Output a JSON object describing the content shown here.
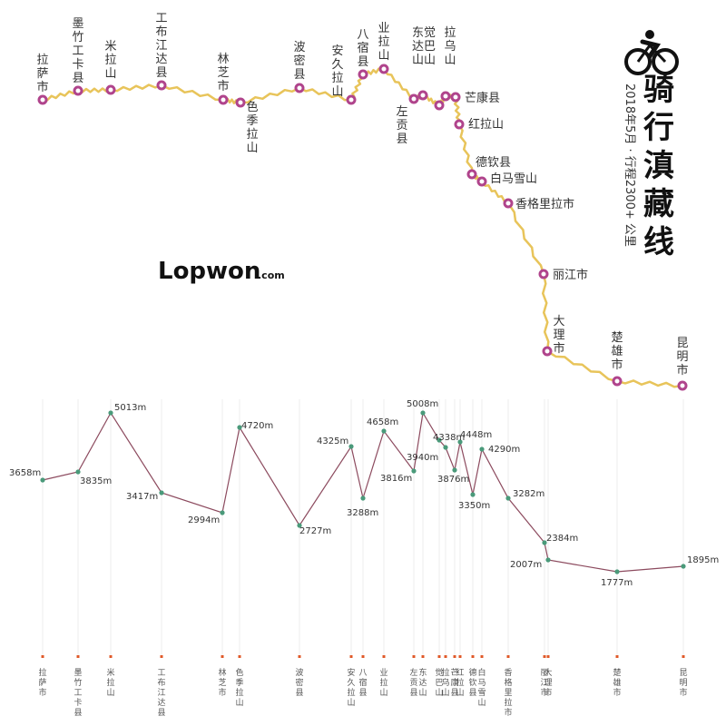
{
  "title": "骑行滇藏线",
  "subtitle": "2018年5月 · 行程2300+ 公里",
  "brand": {
    "main": "Lopwon",
    "suffix": ".com"
  },
  "colors": {
    "route": "#e8c45a",
    "marker": "#b0448c",
    "elev_line": "#8c4a5e",
    "elev_dot": "#4a9a7a",
    "tick": "#e05a2a",
    "grid": "#eeeeee"
  },
  "icons": {
    "cyclist": "cyclist-icon"
  },
  "stops": [
    {
      "name": "拉萨市",
      "elevation": "3658m"
    },
    {
      "name": "墨竹工卡县",
      "elevation": "3835m"
    },
    {
      "name": "米拉山",
      "elevation": "5013m"
    },
    {
      "name": "工布江达县",
      "elevation": "3417m"
    },
    {
      "name": "林芝市",
      "elevation": "2994m"
    },
    {
      "name": "色季拉山",
      "elevation": "4720m"
    },
    {
      "name": "波密县",
      "elevation": "2727m"
    },
    {
      "name": "安久拉山",
      "elevation": "4325m"
    },
    {
      "name": "八宿县",
      "elevation": "3288m"
    },
    {
      "name": "业拉山",
      "elevation": "4658m"
    },
    {
      "name": "左贡县",
      "elevation": "3816m"
    },
    {
      "name": "东达山",
      "map_label": [
        "东觉",
        "达巴",
        "山山"
      ],
      "axis_label": "东达山",
      "elevation": "5008m"
    },
    {
      "name": "觉巴山",
      "axis_label": "觉巴山",
      "elevation": "3940m"
    },
    {
      "name": "拉乌山",
      "elevation": "4338m"
    },
    {
      "name": "芒康县",
      "elevation": "3876m"
    },
    {
      "name": "红拉山",
      "elevation": "4448m"
    },
    {
      "name": "德钦县",
      "elevation": "3350m"
    },
    {
      "name": "白马雪山",
      "elevation": "4290m"
    },
    {
      "name": "香格里拉市",
      "elevation": "3282m"
    },
    {
      "name": "丽江市",
      "elevation": "2384m"
    },
    {
      "name": "大理市",
      "elevation": "2007m"
    },
    {
      "name": "楚雄市",
      "elevation": "1777m"
    },
    {
      "name": "昆明市",
      "elevation": "1895m"
    }
  ]
}
